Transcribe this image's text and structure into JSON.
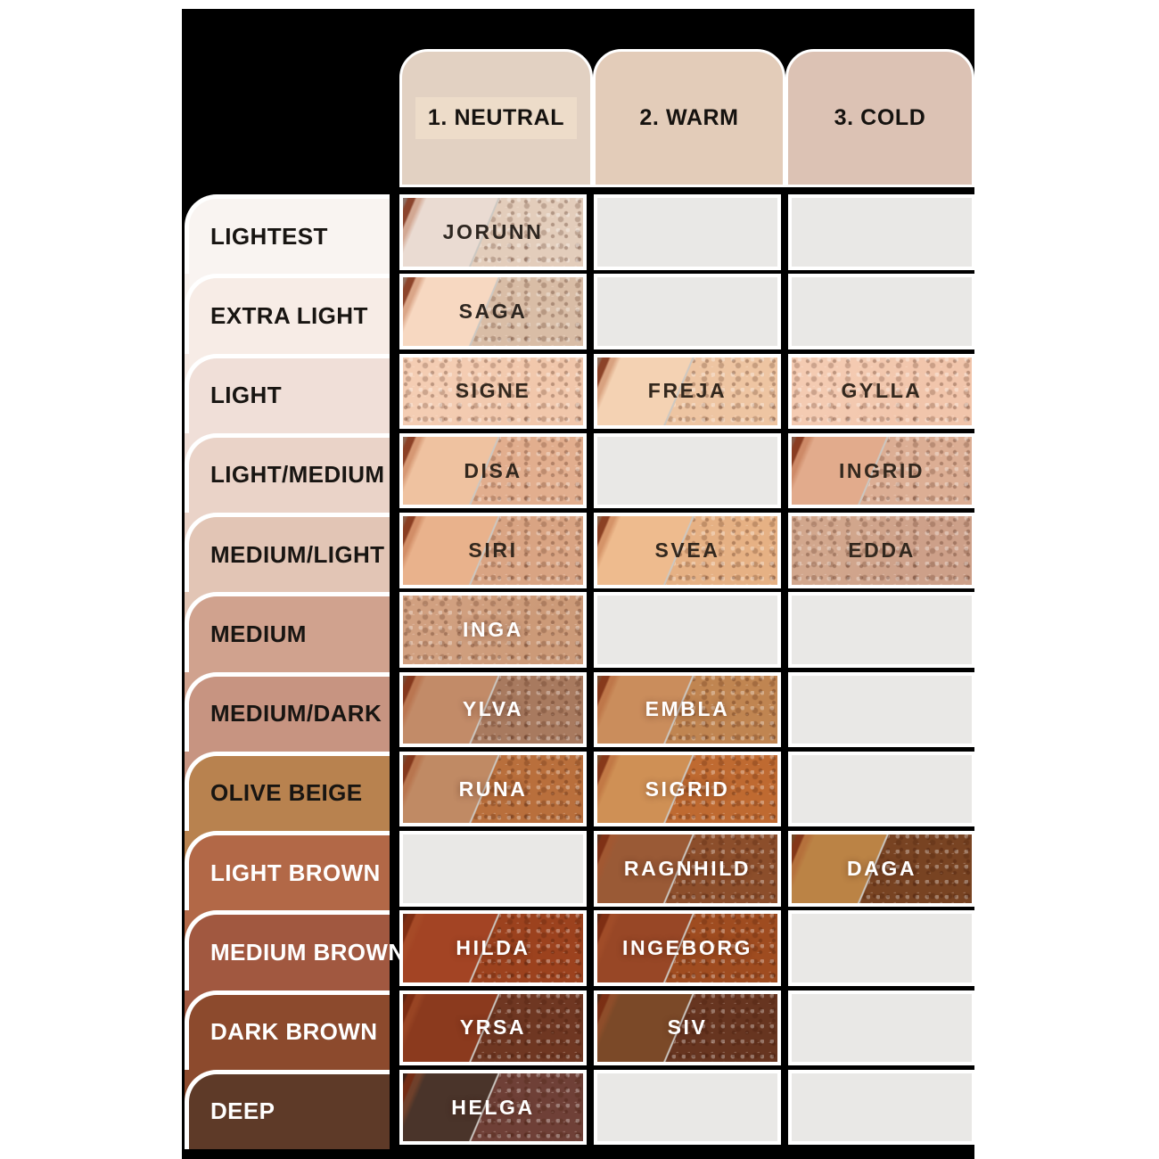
{
  "page": {
    "background": "#ffffff"
  },
  "table": {
    "background": "#000000",
    "empty_cell_color": "#e9e8e6",
    "columns": [
      {
        "label": "1. NEUTRAL",
        "color": "#e2d1c2",
        "text_color": "#15120f",
        "label_highlight": "#eddcc9"
      },
      {
        "label": "2. WARM",
        "color": "#e3ccb9",
        "text_color": "#15120f"
      },
      {
        "label": "3. COLD",
        "color": "#dcc2b4",
        "text_color": "#15120f"
      }
    ],
    "rows": [
      {
        "label": "LIGHTEST",
        "color": "#f9f4f1",
        "text_color": "#181512",
        "cells": [
          {
            "name": "JORUNN",
            "smooth": "#eadbd2",
            "powder": "#e3cdbb",
            "text_color": "#2e2721"
          },
          null,
          null
        ]
      },
      {
        "label": "EXTRA LIGHT",
        "color": "#f7ece6",
        "text_color": "#181512",
        "cells": [
          {
            "name": "SAGA",
            "smooth": "#f7d8c1",
            "powder": "#d9bda6",
            "text_color": "#2e2721"
          },
          null,
          null
        ]
      },
      {
        "label": "LIGHT",
        "color": "#f0dfd8",
        "text_color": "#181512",
        "cells": [
          {
            "name": "SIGNE",
            "smooth": "#f4cdb3",
            "powder": "#f1c7ab",
            "text_color": "#33281e",
            "full": true
          },
          {
            "name": "FREJA",
            "smooth": "#f4d2b3",
            "powder": "#eec5a2",
            "text_color": "#33281e"
          },
          {
            "name": "GYLLA",
            "smooth": "#f4cbb2",
            "powder": "#f1c5ab",
            "text_color": "#33281e",
            "full": true
          }
        ]
      },
      {
        "label": "LIGHT/MEDIUM",
        "color": "#ead3c8",
        "text_color": "#181512",
        "cells": [
          {
            "name": "DISA",
            "smooth": "#efc2a0",
            "powder": "#e2ae8e",
            "text_color": "#33281e"
          },
          null,
          {
            "name": "INGRID",
            "smooth": "#e2ab8c",
            "powder": "#dcae94",
            "text_color": "#33281e"
          }
        ]
      },
      {
        "label": "MEDIUM/LIGHT",
        "color": "#e2c5b5",
        "text_color": "#181512",
        "cells": [
          {
            "name": "SIRI",
            "smooth": "#e9b28c",
            "powder": "#d9a483",
            "text_color": "#33281e"
          },
          {
            "name": "SVEA",
            "smooth": "#eebb8e",
            "powder": "#e6b184",
            "text_color": "#33281e"
          },
          {
            "name": "EDDA",
            "smooth": "#d2a78d",
            "powder": "#cda089",
            "text_color": "#33281e",
            "full": true
          }
        ]
      },
      {
        "label": "MEDIUM",
        "color": "#d0a28e",
        "text_color": "#181512",
        "cells": [
          {
            "name": "INGA",
            "smooth": "#d1a080",
            "powder": "#cc9a78",
            "text_color": "#ffffff",
            "full": true
          },
          null,
          null
        ]
      },
      {
        "label": "MEDIUM/DARK",
        "color": "#c79481",
        "text_color": "#181512",
        "cells": [
          {
            "name": "YLVA",
            "smooth": "#c28b68",
            "powder": "#a87a5f",
            "text_color": "#ffffff"
          },
          {
            "name": "EMBLA",
            "smooth": "#ca8d5c",
            "powder": "#c08551",
            "text_color": "#ffffff"
          },
          null
        ]
      },
      {
        "label": "OLIVE BEIGE",
        "color": "#b8824f",
        "text_color": "#181512",
        "cells": [
          {
            "name": "RUNA",
            "smooth": "#c08a64",
            "powder": "#b96f3c",
            "text_color": "#ffffff"
          },
          {
            "name": "SIGRID",
            "smooth": "#cf9055",
            "powder": "#bf6a31",
            "text_color": "#ffffff"
          },
          null
        ]
      },
      {
        "label": "LIGHT BROWN",
        "color": "#b26847",
        "text_color": "#ffffff",
        "cells": [
          null,
          {
            "name": "RAGNHILD",
            "smooth": "#9a5a36",
            "powder": "#8c4e2b",
            "text_color": "#ffffff"
          },
          {
            "name": "DAGA",
            "smooth": "#bb8345",
            "powder": "#784322",
            "text_color": "#ffffff"
          }
        ]
      },
      {
        "label": "MEDIUM BROWN",
        "color": "#a15840",
        "text_color": "#ffffff",
        "cells": [
          {
            "name": "HILDA",
            "smooth": "#a34424",
            "powder": "#9c421e",
            "text_color": "#ffffff"
          },
          {
            "name": "INGEBORG",
            "smooth": "#984726",
            "powder": "#9f4c20",
            "text_color": "#ffffff"
          },
          null
        ]
      },
      {
        "label": "DARK BROWN",
        "color": "#8c4a2d",
        "text_color": "#ffffff",
        "cells": [
          {
            "name": "YRSA",
            "smooth": "#8b3a1e",
            "powder": "#6f3722",
            "text_color": "#ffffff"
          },
          {
            "name": "SIV",
            "smooth": "#7b4928",
            "powder": "#673520",
            "text_color": "#ffffff"
          },
          null
        ]
      },
      {
        "label": "DEEP",
        "color": "#5e3a28",
        "text_color": "#ffffff",
        "cells": [
          {
            "name": "HELGA",
            "smooth": "#4a342a",
            "powder": "#6f4037",
            "text_color": "#ffffff"
          },
          null,
          null
        ]
      }
    ]
  },
  "chart_data": {
    "type": "table",
    "columns": [
      "1. NEUTRAL",
      "2. WARM",
      "3. COLD"
    ],
    "rows": [
      "LIGHTEST",
      "EXTRA LIGHT",
      "LIGHT",
      "LIGHT/MEDIUM",
      "MEDIUM/LIGHT",
      "MEDIUM",
      "MEDIUM/DARK",
      "OLIVE BEIGE",
      "LIGHT BROWN",
      "MEDIUM BROWN",
      "DARK BROWN",
      "DEEP"
    ],
    "cells": [
      [
        "JORUNN",
        null,
        null
      ],
      [
        "SAGA",
        null,
        null
      ],
      [
        "SIGNE",
        "FREJA",
        "GYLLA"
      ],
      [
        "DISA",
        null,
        "INGRID"
      ],
      [
        "SIRI",
        "SVEA",
        "EDDA"
      ],
      [
        "INGA",
        null,
        null
      ],
      [
        "YLVA",
        "EMBLA",
        null
      ],
      [
        "RUNA",
        "SIGRID",
        null
      ],
      [
        null,
        "RAGNHILD",
        "DAGA"
      ],
      [
        "HILDA",
        "INGEBORG",
        null
      ],
      [
        "YRSA",
        "SIV",
        null
      ],
      [
        "HELGA",
        null,
        null
      ]
    ],
    "legend_position": "none",
    "grid": false
  }
}
